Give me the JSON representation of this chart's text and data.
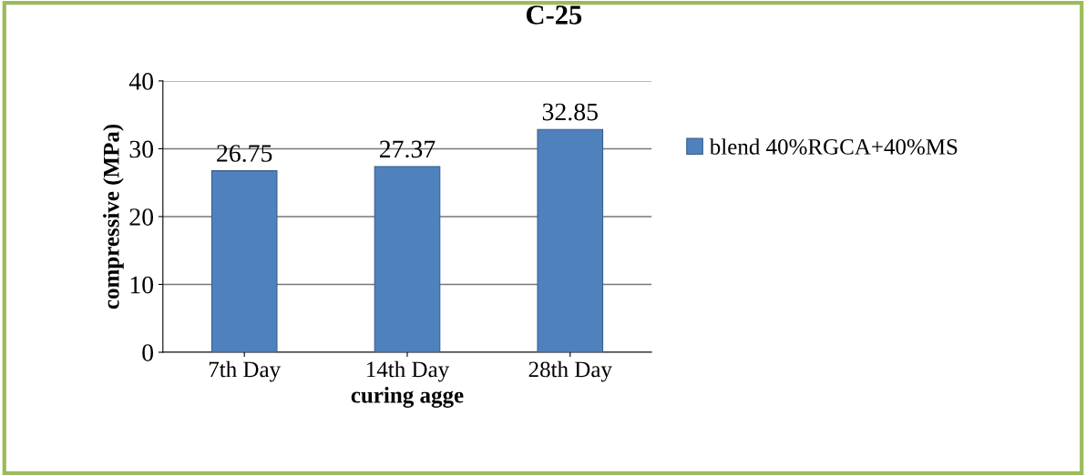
{
  "chart_data": {
    "type": "bar",
    "title": "C-25",
    "xlabel": "curing agge",
    "ylabel": "compressive (MPa)",
    "categories": [
      "7th Day",
      "14th Day",
      "28th Day"
    ],
    "series": [
      {
        "name": "blend 40%RGCA+40%MS",
        "color": "#4f81bd",
        "values": [
          26.75,
          27.37,
          32.85
        ]
      }
    ],
    "ylim": [
      0,
      40
    ],
    "yticks": [
      0,
      10,
      20,
      30,
      40
    ],
    "grid": "y",
    "legend": "right",
    "data_labels": true
  }
}
